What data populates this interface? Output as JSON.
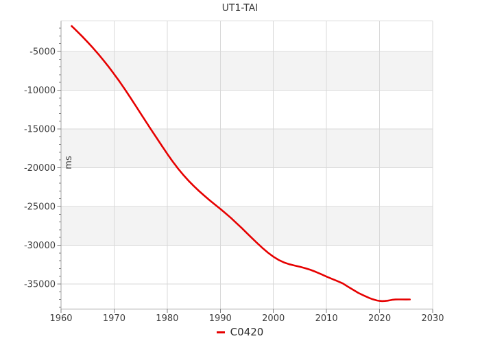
{
  "figure": {
    "title": "UT1-TAI"
  },
  "legend": {
    "items": [
      {
        "label": "C0420",
        "color": "#e60000"
      }
    ]
  },
  "colors": {
    "background": "#ffffff",
    "band": "#f3f3f3",
    "grid": "#d8d8d8",
    "frame": "#d9d9d9",
    "axis": "#a0a0a0",
    "tick": "#808080",
    "text": "#3d3d3d",
    "series": "#e60000"
  },
  "chart_data": {
    "type": "line",
    "title": "UT1-TAI",
    "xlabel": "",
    "ylabel": "ms",
    "xlim": [
      1960,
      2030
    ],
    "ylim": [
      -38230,
      -1060
    ],
    "x_ticks": [
      1960,
      1970,
      1980,
      1990,
      2000,
      2010,
      2020,
      2030
    ],
    "x_tick_labels": [
      "1960",
      "1970",
      "1980",
      "1990",
      "2000",
      "2010",
      "2020",
      "2030"
    ],
    "y_ticks": [
      -5000,
      -10000,
      -15000,
      -20000,
      -25000,
      -30000,
      -35000
    ],
    "y_tick_labels": [
      "-5000",
      "-10000",
      "-15000",
      "-20000",
      "-25000",
      "-30000",
      "-35000"
    ],
    "y_minor_tick_step": 1000,
    "grid": true,
    "stripe_bands": [
      [
        -5000,
        -10000
      ],
      [
        -15000,
        -20000
      ],
      [
        -25000,
        -30000
      ]
    ],
    "legend_position": "bottom-center",
    "series": [
      {
        "name": "C0420",
        "color": "#e60000",
        "points": [
          [
            1962,
            -1720
          ],
          [
            1962.5,
            -2050
          ],
          [
            1963,
            -2380
          ],
          [
            1964,
            -3070
          ],
          [
            1965,
            -3790
          ],
          [
            1966,
            -4540
          ],
          [
            1967,
            -5320
          ],
          [
            1968,
            -6140
          ],
          [
            1969,
            -7010
          ],
          [
            1970,
            -7920
          ],
          [
            1971,
            -8870
          ],
          [
            1972,
            -9860
          ],
          [
            1973,
            -10890
          ],
          [
            1974,
            -11940
          ],
          [
            1975,
            -13000
          ],
          [
            1976,
            -14060
          ],
          [
            1977,
            -15110
          ],
          [
            1978,
            -16150
          ],
          [
            1979,
            -17180
          ],
          [
            1980,
            -18200
          ],
          [
            1981,
            -19170
          ],
          [
            1982,
            -20070
          ],
          [
            1983,
            -20900
          ],
          [
            1984,
            -21660
          ],
          [
            1985,
            -22360
          ],
          [
            1986,
            -23010
          ],
          [
            1987,
            -23620
          ],
          [
            1988,
            -24200
          ],
          [
            1989,
            -24760
          ],
          [
            1990,
            -25310
          ],
          [
            1991,
            -25880
          ],
          [
            1992,
            -26480
          ],
          [
            1993,
            -27110
          ],
          [
            1994,
            -27760
          ],
          [
            1995,
            -28430
          ],
          [
            1996,
            -29100
          ],
          [
            1997,
            -29760
          ],
          [
            1998,
            -30390
          ],
          [
            1999,
            -30970
          ],
          [
            2000,
            -31480
          ],
          [
            2001,
            -31900
          ],
          [
            2002,
            -32220
          ],
          [
            2003,
            -32450
          ],
          [
            2004,
            -32620
          ],
          [
            2005,
            -32780
          ],
          [
            2006,
            -32960
          ],
          [
            2007,
            -33180
          ],
          [
            2008,
            -33440
          ],
          [
            2009,
            -33730
          ],
          [
            2010,
            -34040
          ],
          [
            2011,
            -34330
          ],
          [
            2012,
            -34610
          ],
          [
            2013,
            -34900
          ],
          [
            2014,
            -35330
          ],
          [
            2015,
            -35740
          ],
          [
            2016,
            -36150
          ],
          [
            2017,
            -36480
          ],
          [
            2018,
            -36790
          ],
          [
            2018.5,
            -36920
          ],
          [
            2019,
            -37030
          ],
          [
            2019.5,
            -37120
          ],
          [
            2020,
            -37180
          ],
          [
            2020.5,
            -37200
          ],
          [
            2021,
            -37190
          ],
          [
            2021.5,
            -37150
          ],
          [
            2022,
            -37090
          ],
          [
            2022.5,
            -37030
          ],
          [
            2023,
            -37000
          ],
          [
            2023.5,
            -36990
          ],
          [
            2024,
            -36990
          ],
          [
            2025,
            -37000
          ],
          [
            2025.7,
            -36990
          ]
        ]
      }
    ]
  }
}
